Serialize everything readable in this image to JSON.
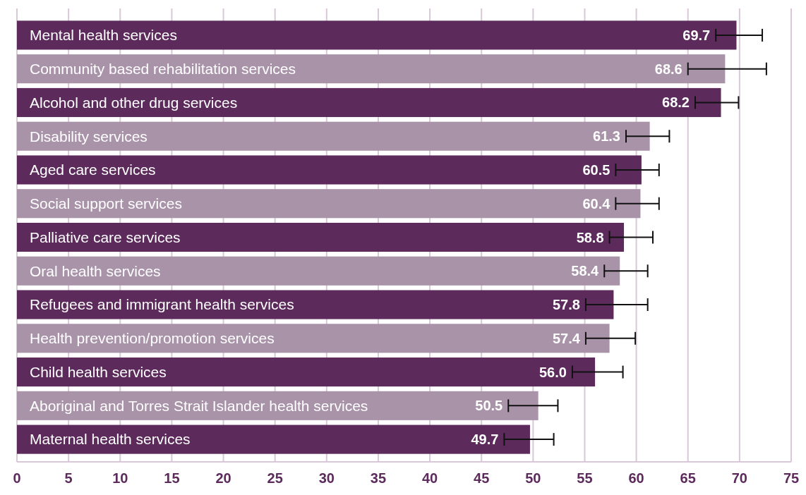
{
  "chart_data": {
    "type": "bar",
    "orientation": "horizontal",
    "categories": [
      "Mental health services",
      "Community based rehabilitation services",
      "Alcohol and other drug services",
      "Disability services",
      "Aged care services",
      "Social support services",
      "Palliative care services",
      "Oral health services",
      "Refugees and immigrant health services",
      "Health prevention/promotion services",
      "Child health services",
      "Aboriginal and Torres Strait Islander health services",
      "Maternal health services"
    ],
    "values": [
      69.7,
      68.6,
      68.2,
      61.3,
      60.5,
      60.4,
      58.8,
      58.4,
      57.8,
      57.4,
      56.0,
      50.5,
      49.7
    ],
    "colors": [
      "#5c2b5c",
      "#a993a9",
      "#5c2b5c",
      "#a993a9",
      "#5c2b5c",
      "#a993a9",
      "#5c2b5c",
      "#a993a9",
      "#5c2b5c",
      "#a993a9",
      "#5c2b5c",
      "#a993a9",
      "#5c2b5c"
    ],
    "errors": [
      [
        67.7,
        72.2
      ],
      [
        65.0,
        72.6
      ],
      [
        65.7,
        69.9
      ],
      [
        59.0,
        63.2
      ],
      [
        58.0,
        62.2
      ],
      [
        58.0,
        62.2
      ],
      [
        57.4,
        61.6
      ],
      [
        56.9,
        61.1
      ],
      [
        55.1,
        61.1
      ],
      [
        55.1,
        59.9
      ],
      [
        53.8,
        58.7
      ],
      [
        47.6,
        52.4
      ],
      [
        47.2,
        52.0
      ]
    ],
    "xlim": [
      0,
      75
    ],
    "xticks": [
      0,
      5,
      10,
      15,
      20,
      25,
      30,
      35,
      40,
      45,
      50,
      55,
      60,
      65,
      70,
      75
    ],
    "value_labels": [
      "69.7",
      "68.6",
      "68.2",
      "61.3",
      "60.5",
      "60.4",
      "58.8",
      "58.4",
      "57.8",
      "57.4",
      "56.0",
      "50.5",
      "49.7"
    ],
    "grid": "x"
  }
}
